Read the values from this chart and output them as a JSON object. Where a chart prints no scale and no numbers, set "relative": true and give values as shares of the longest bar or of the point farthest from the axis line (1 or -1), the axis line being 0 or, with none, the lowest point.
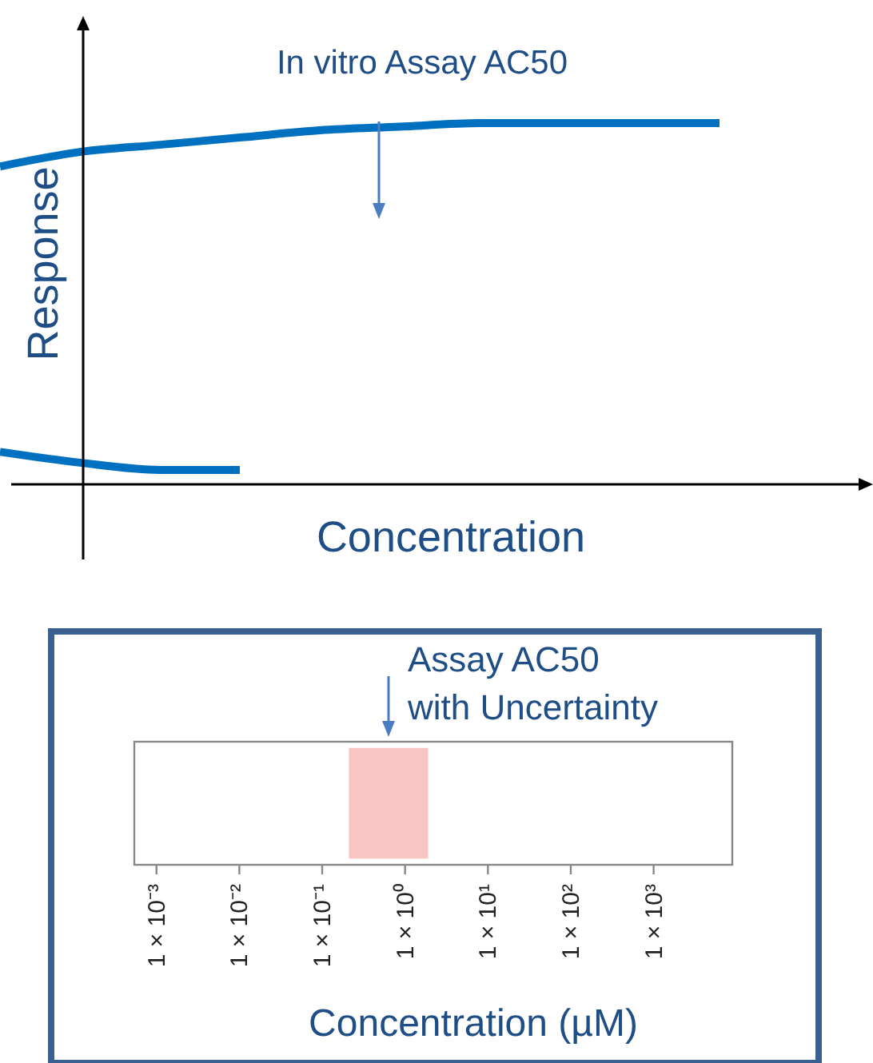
{
  "chart_data": [
    {
      "type": "line",
      "relative": true,
      "xlabel": "Concentration",
      "ylabel": "Response",
      "annotations": [
        "In vitro Assay AC50"
      ],
      "categories": [
        null,
        null,
        null,
        null,
        null,
        null,
        null,
        null,
        null,
        null
      ],
      "series": [
        {
          "color": "#0070c0",
          "values": [
            0.88,
            0.92,
            0.94,
            0.96,
            0.98,
            0.99,
            1,
            1,
            1,
            1
          ]
        },
        {
          "color": "#0070c0",
          "values": [
            0.09,
            0.06,
            0.04,
            0.04,
            null,
            null,
            null,
            null,
            null,
            null
          ]
        }
      ],
      "marker": "none"
    },
    {
      "type": "bar",
      "orientation": "horizontal",
      "categories": [
        null
      ],
      "base": [
        0.21
      ],
      "values": [
        1.69
      ],
      "color": "#f8c4c4",
      "log": "x",
      "xlim": [
        0.00054,
        8900
      ],
      "xticks": [
        {
          "value": 0.001,
          "label": "1 × 10⁻³"
        },
        {
          "value": 0.01,
          "label": "1 × 10⁻²"
        },
        {
          "value": 0.1,
          "label": "1 × 10⁻¹"
        },
        {
          "value": 1,
          "label": "1 × 10⁰"
        },
        {
          "value": 10,
          "label": "1 × 10¹"
        },
        {
          "value": 100,
          "label": "1 × 10²"
        },
        {
          "value": 1000,
          "label": "1 × 10³"
        }
      ],
      "tick_labels": "x",
      "xlabel": "Concentration (µM)",
      "annotations": [
        "Assay AC50\nwith Uncertainty"
      ]
    }
  ]
}
